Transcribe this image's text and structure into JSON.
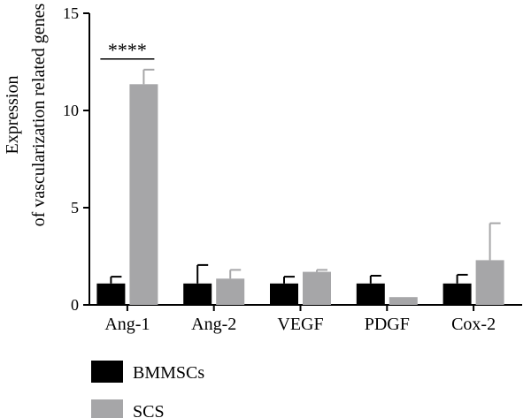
{
  "chart_data": {
    "type": "bar",
    "title": "",
    "xlabel": "",
    "ylabel": [
      "Expression",
      "of vascularization related genes"
    ],
    "ylim": [
      0,
      15
    ],
    "yticks": [
      0,
      5,
      10,
      15
    ],
    "categories": [
      "Ang-1",
      "Ang-2",
      "VEGF",
      "PDGF",
      "Cox-2"
    ],
    "series": [
      {
        "name": "BMMSCs",
        "color": "#000000",
        "values": [
          1.1,
          1.1,
          1.1,
          1.1,
          1.1
        ],
        "errors": [
          0.35,
          0.95,
          0.35,
          0.4,
          0.45
        ]
      },
      {
        "name": "SCS",
        "color": "#a6a6a8",
        "values": [
          11.35,
          1.35,
          1.7,
          0.4,
          2.3
        ],
        "errors": [
          0.75,
          0.45,
          0.1,
          0.0,
          1.9
        ]
      }
    ],
    "annotations": [
      {
        "category": "Ang-1",
        "text": "****"
      }
    ],
    "legend": "bottom-left",
    "grid": false
  }
}
